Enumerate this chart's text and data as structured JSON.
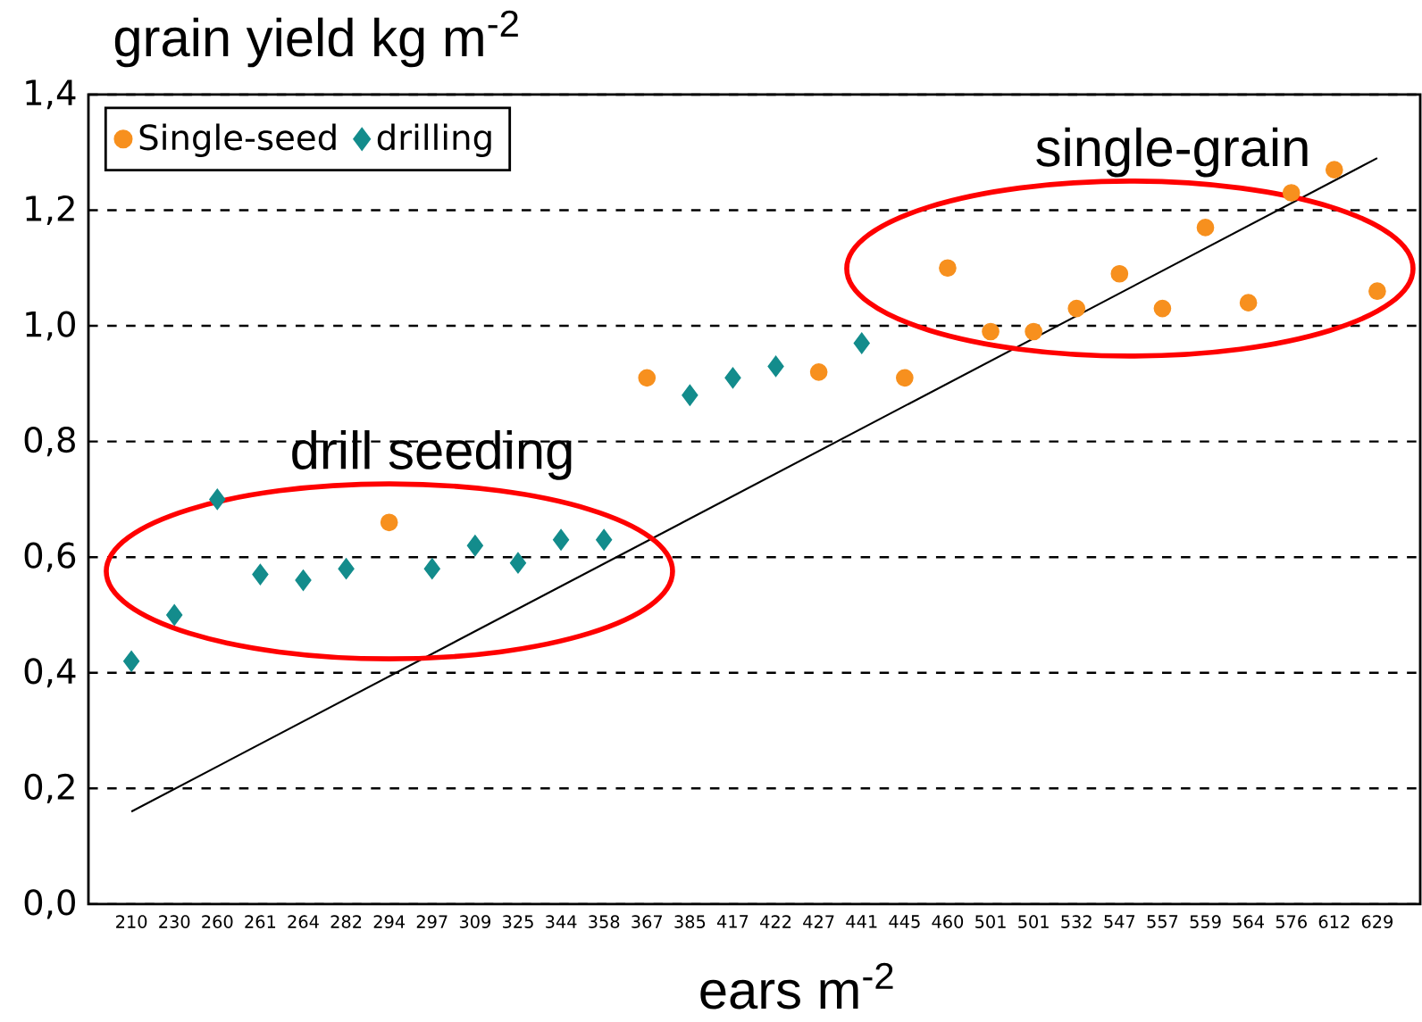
{
  "chart_data": {
    "type": "scatter",
    "ylabel": "grain yield kg m$^{-2}$",
    "xlabel": "ears m$^{-2}$",
    "categories": [
      "210",
      "230",
      "260",
      "261",
      "264",
      "282",
      "294",
      "297",
      "309",
      "325",
      "344",
      "358",
      "367",
      "385",
      "417",
      "422",
      "427",
      "441",
      "445",
      "460",
      "501",
      "501",
      "532",
      "547",
      "557",
      "559",
      "564",
      "576",
      "612",
      "629"
    ],
    "series": [
      {
        "name": "Single-seed",
        "color": "#f7901e",
        "marker": "circle",
        "values": [
          null,
          null,
          null,
          null,
          null,
          null,
          0.66,
          null,
          null,
          null,
          null,
          null,
          0.91,
          null,
          null,
          null,
          0.92,
          null,
          0.91,
          1.1,
          0.99,
          0.99,
          1.03,
          1.09,
          1.03,
          1.17,
          1.04,
          1.23,
          1.27,
          1.06
        ]
      },
      {
        "name": "drilling",
        "color": "#138c8c",
        "marker": "diamond",
        "values": [
          0.42,
          0.5,
          0.7,
          0.57,
          0.56,
          0.58,
          null,
          0.58,
          0.62,
          0.59,
          0.63,
          0.63,
          null,
          0.88,
          0.91,
          0.93,
          null,
          0.97,
          null,
          null,
          null,
          null,
          null,
          null,
          null,
          null,
          null,
          null,
          null,
          null
        ]
      },
      {
        "type": "line",
        "color": "#000000",
        "values": [
          0.16,
          null,
          null,
          null,
          null,
          null,
          null,
          null,
          null,
          null,
          null,
          null,
          null,
          null,
          null,
          null,
          null,
          null,
          null,
          null,
          null,
          null,
          null,
          null,
          null,
          null,
          null,
          null,
          null,
          1.29
        ]
      }
    ],
    "ylim": [
      0,
      1.4
    ],
    "yticks": [
      {
        "value": 0,
        "label": "0,0"
      },
      {
        "value": 0.2,
        "label": "0,2"
      },
      {
        "value": 0.4,
        "label": "0,4"
      },
      {
        "value": 0.6,
        "label": "0,6"
      },
      {
        "value": 0.8,
        "label": "0,8"
      },
      {
        "value": 1.0,
        "label": "1,0"
      },
      {
        "value": 1.2,
        "label": "1,2"
      },
      {
        "value": 1.4,
        "label": "1,4"
      }
    ],
    "grid": "y",
    "legend": "top left",
    "annotations": [
      "drill seeding",
      "single-grain"
    ]
  }
}
